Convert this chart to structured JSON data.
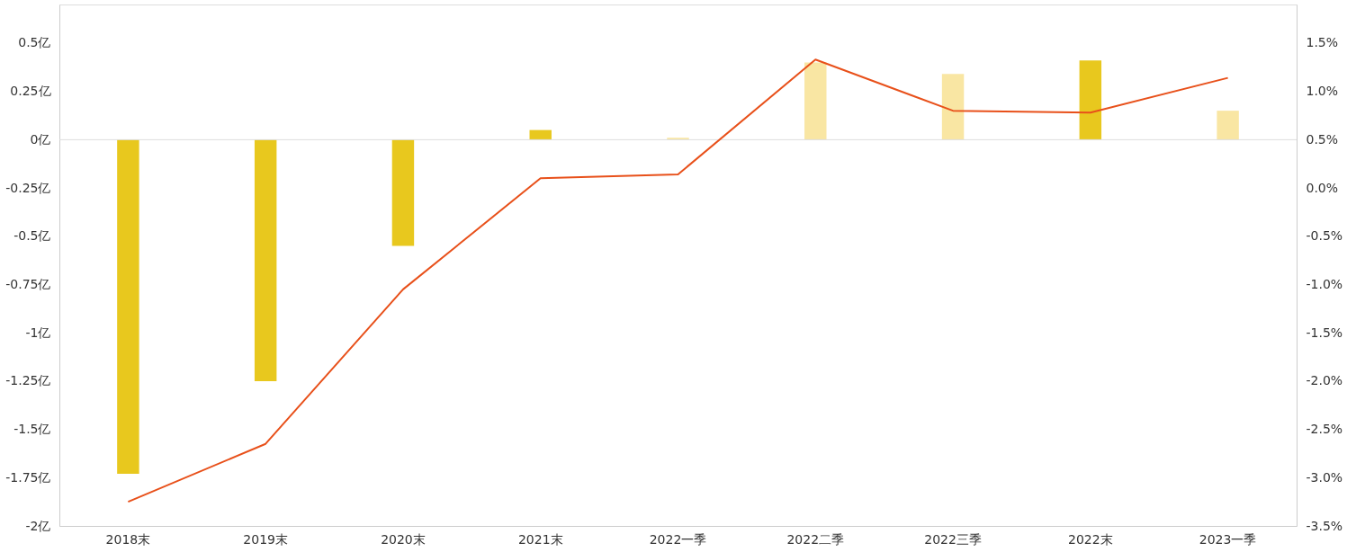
{
  "chart_data": {
    "type": "bar",
    "categories": [
      "2018末",
      "2019末",
      "2020末",
      "2021末",
      "2022一季",
      "2022二季",
      "2022三季",
      "2022末",
      "2023一季"
    ],
    "series": [
      {
        "axis": "y",
        "values": [
          -1.73,
          -1.25,
          -0.55,
          0.05,
          0.01,
          0.4,
          0.34,
          0.41,
          0.15
        ],
        "colors": [
          "#e8c81e",
          "#e8c81e",
          "#e8c81e",
          "#e8c81e",
          "#f9e6a3",
          "#f9e6a3",
          "#f9e6a3",
          "#e8c81e",
          "#f9e6a3"
        ]
      },
      {
        "type": "line",
        "axis": "y2",
        "color": "#e8501a",
        "values": [
          -3.25,
          -2.65,
          -1.05,
          0.1,
          0.14,
          1.33,
          0.8,
          0.78,
          1.14
        ]
      }
    ],
    "ylim": [
      -2,
      0.7
    ],
    "yticks": [
      {
        "value": 0.5,
        "label": "0.5亿"
      },
      {
        "value": 0.25,
        "label": "0.25亿"
      },
      {
        "value": 0,
        "label": "0亿"
      },
      {
        "value": -0.25,
        "label": "-0.25亿"
      },
      {
        "value": -0.5,
        "label": "-0.5亿"
      },
      {
        "value": -0.75,
        "label": "-0.75亿"
      },
      {
        "value": -1,
        "label": "-1亿"
      },
      {
        "value": -1.25,
        "label": "-1.25亿"
      },
      {
        "value": -1.5,
        "label": "-1.5亿"
      },
      {
        "value": -1.75,
        "label": "-1.75亿"
      },
      {
        "value": -2,
        "label": "-2亿"
      }
    ],
    "y2lim": [
      -3.5,
      1.9
    ],
    "y2ticks": [
      {
        "value": 1.5,
        "label": "1.5%"
      },
      {
        "value": 1,
        "label": "1.0%"
      },
      {
        "value": 0.5,
        "label": "0.5%"
      },
      {
        "value": 0,
        "label": "0.0%"
      },
      {
        "value": -0.5,
        "label": "-0.5%"
      },
      {
        "value": -1,
        "label": "-1.0%"
      },
      {
        "value": -1.5,
        "label": "-1.5%"
      },
      {
        "value": -2,
        "label": "-2.0%"
      },
      {
        "value": -2.5,
        "label": "-2.5%"
      },
      {
        "value": -3,
        "label": "-3.0%"
      },
      {
        "value": -3.5,
        "label": "-3.5%"
      }
    ],
    "ref_lines": [
      {
        "axis": "y",
        "value": 0,
        "color": "#dddddd"
      }
    ],
    "grid": false,
    "marker": "none",
    "line_style": "solid"
  }
}
